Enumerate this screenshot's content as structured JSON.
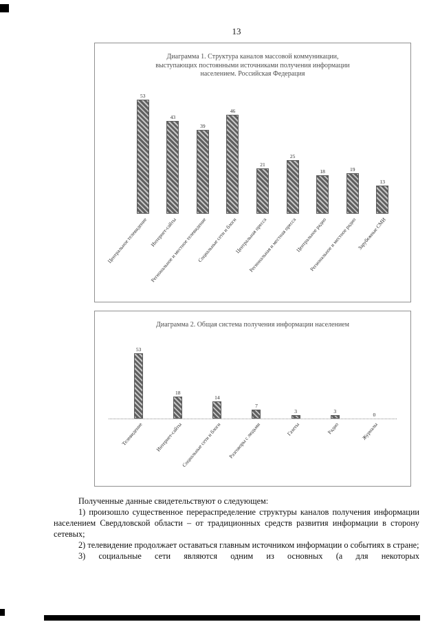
{
  "page": {
    "number": "13"
  },
  "chart_data": [
    {
      "type": "bar",
      "title": "Диаграмма 1. Структура каналов массовой коммуникации, выступающих постоянными источниками получения информации населением. Российская Федерация",
      "categories": [
        "Центральное телевидение",
        "Интернет-сайты",
        "Региональное и местное телевидение",
        "Социальные сети и блоги",
        "Центральная пресса",
        "Региональная и местная пресса",
        "Центральное радио",
        "Региональное и местное радио",
        "Зарубежные СМИ"
      ],
      "values": [
        53,
        43,
        39,
        46,
        21,
        25,
        18,
        19,
        13
      ],
      "xlabel": "",
      "ylabel": "",
      "ylim": [
        0,
        60
      ],
      "grid": false,
      "legend": "none",
      "bar_fill": "#c6c6c6",
      "bar_hatch": "#5f5f5f",
      "baseline": "none"
    },
    {
      "type": "bar",
      "title": "Диаграмма 2. Общая система получения информации населением",
      "categories": [
        "Телевидение",
        "Интернет-сайты",
        "Социальные сети и блоги",
        "Разговоры с людьми",
        "Газеты",
        "Радио",
        "Журналы"
      ],
      "values": [
        53,
        18,
        14,
        7,
        3,
        3,
        0
      ],
      "xlabel": "",
      "ylabel": "",
      "ylim": [
        0,
        60
      ],
      "grid": false,
      "legend": "none",
      "bar_fill": "#c6c6c6",
      "bar_hatch": "#5f5f5f",
      "baseline": "dotted"
    }
  ],
  "body": {
    "intro": "Полученные данные свидетельствуют о следующем:",
    "items": [
      "1) произошло существенное перераспределение структуры каналов получения информации населением Свердловской области – от традиционных средств развития информации в сторону сетевых;",
      "2) телевидение продолжает оставаться главным источником информации о событиях в стране;",
      "3) социальные сети являются одним из основных (а для некоторых"
    ]
  }
}
